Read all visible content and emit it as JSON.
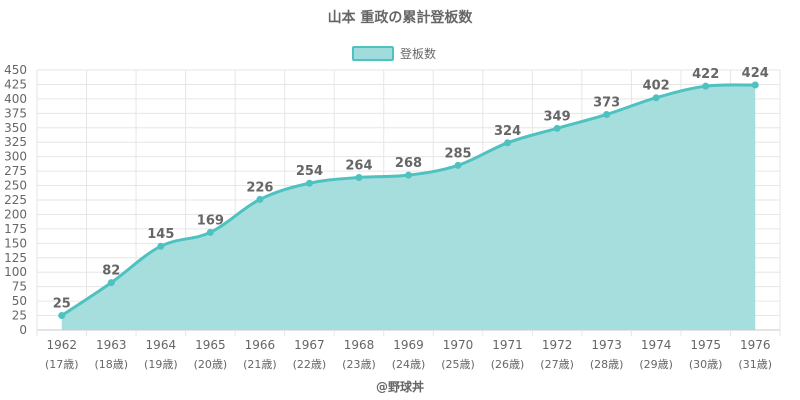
{
  "chart_data": {
    "type": "area",
    "title": "山本 重政の累計登板数",
    "legend": {
      "label": "登板数",
      "position": "top"
    },
    "categories": [
      "1962",
      "1963",
      "1964",
      "1965",
      "1966",
      "1967",
      "1968",
      "1969",
      "1970",
      "1971",
      "1972",
      "1973",
      "1974",
      "1975",
      "1976"
    ],
    "sublabels": [
      "(17歳)",
      "(18歳)",
      "(19歳)",
      "(20歳)",
      "(21歳)",
      "(22歳)",
      "(23歳)",
      "(24歳)",
      "(25歳)",
      "(26歳)",
      "(27歳)",
      "(28歳)",
      "(29歳)",
      "(30歳)",
      "(31歳)"
    ],
    "series": [
      {
        "name": "登板数",
        "values": [
          25,
          82,
          145,
          169,
          226,
          254,
          264,
          268,
          285,
          324,
          349,
          373,
          402,
          422,
          424
        ]
      }
    ],
    "ylim": [
      0,
      450
    ],
    "ystep": 25,
    "grid": true,
    "xlabel": "",
    "ylabel": "",
    "credit": "@野球丼",
    "colors": {
      "line": "#4ec1c1",
      "fill": "#a1dcdc",
      "grid": "#e6e6e6",
      "text": "#666666"
    }
  }
}
